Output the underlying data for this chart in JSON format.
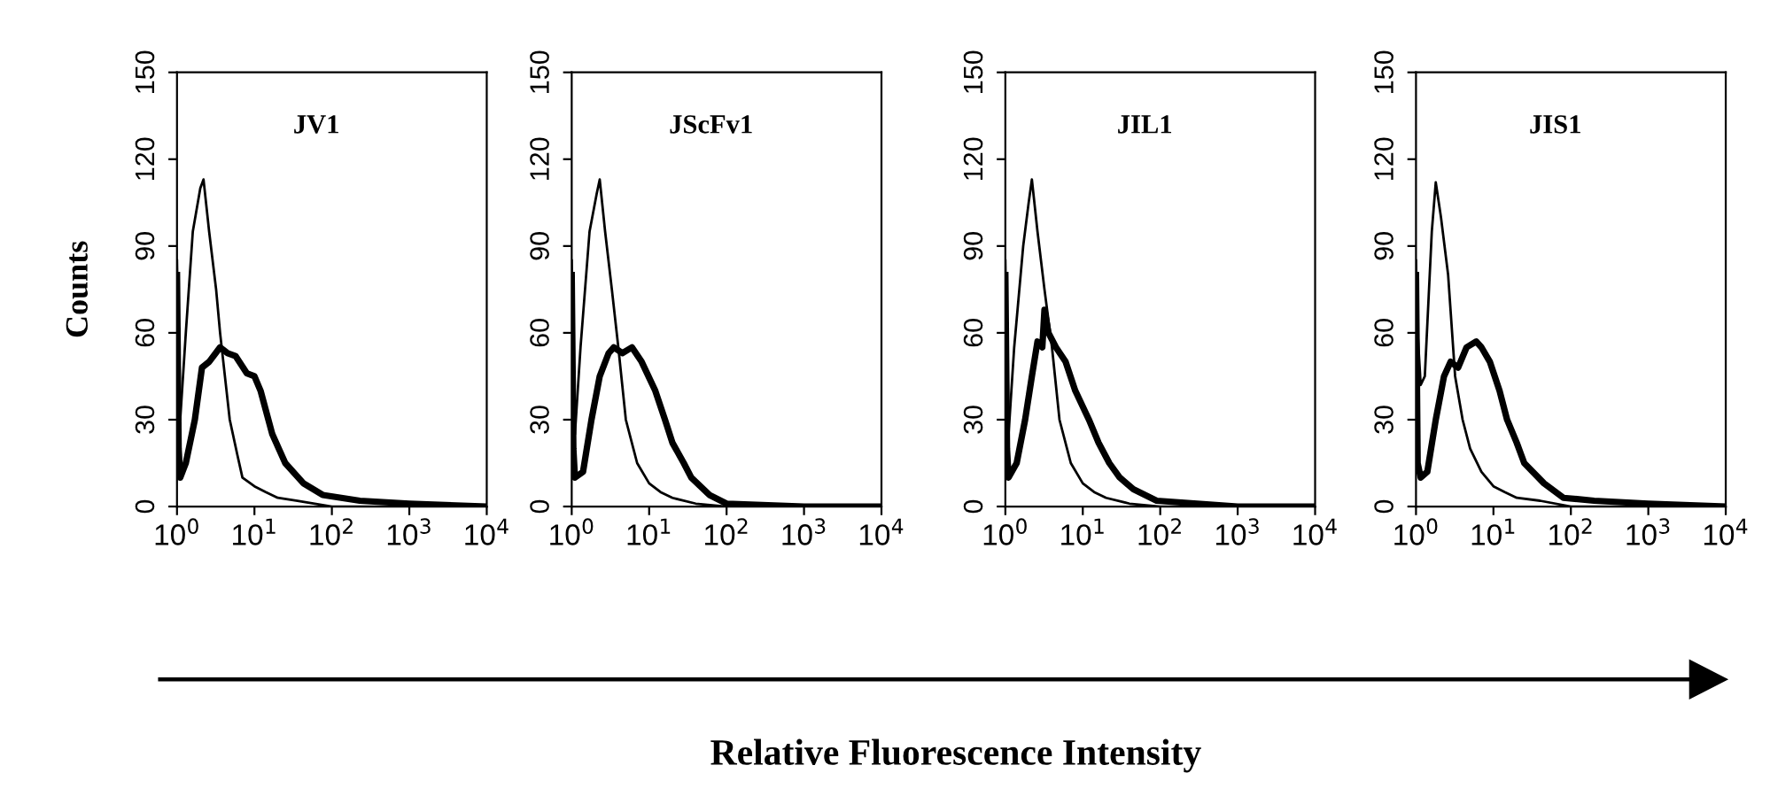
{
  "chart_data": [
    {
      "type": "line",
      "annotations": [
        "JV1"
      ],
      "ylabel": "Counts",
      "xlabel": "Relative Fluorescence Intensity",
      "log": "x",
      "xlim": [
        1,
        10000
      ],
      "ylim": [
        0,
        150
      ],
      "xticks": [
        {
          "value": 1,
          "label": "10$^{0}$"
        },
        {
          "value": 10,
          "label": "10$^{1}$"
        },
        {
          "value": 100,
          "label": "10$^{2}$"
        },
        {
          "value": 1000,
          "label": "10$^{3}$"
        },
        {
          "value": 10000,
          "label": "10$^{4}$"
        }
      ],
      "yticks": [
        0,
        30,
        60,
        90,
        120,
        150
      ],
      "series": [
        {
          "color": "#000000",
          "x": [
            1,
            1.05,
            1.1,
            1.3,
            1.6,
            2.0,
            2.2,
            2.6,
            3.2,
            3.6,
            4.8,
            6,
            7,
            10,
            14,
            20,
            36,
            60,
            100,
            1000,
            10000
          ],
          "values": [
            85,
            50,
            30,
            60,
            95,
            110,
            113,
            95,
            75,
            60,
            30,
            18,
            10,
            7,
            5,
            3,
            2,
            1,
            0,
            0,
            0
          ]
        },
        {
          "color": "#000000",
          "x": [
            1,
            1.05,
            1.1,
            1.3,
            1.7,
            2.1,
            2.6,
            3.6,
            4.5,
            5.7,
            8,
            10,
            12,
            17,
            25,
            43,
            76,
            230,
            1000,
            10000
          ],
          "values": [
            80,
            20,
            10,
            15,
            30,
            48,
            50,
            55,
            53,
            52,
            46,
            45,
            40,
            25,
            15,
            8,
            4,
            2,
            1,
            0
          ]
        }
      ]
    },
    {
      "type": "line",
      "annotations": [
        "JScFv1"
      ],
      "log": "x",
      "xlim": [
        1,
        10000
      ],
      "ylim": [
        0,
        150
      ],
      "xticks": [
        {
          "value": 1,
          "label": "10$^{0}$"
        },
        {
          "value": 10,
          "label": "10$^{1}$"
        },
        {
          "value": 100,
          "label": "10$^{2}$"
        },
        {
          "value": 1000,
          "label": "10$^{3}$"
        },
        {
          "value": 10000,
          "label": "10$^{4}$"
        }
      ],
      "yticks": [
        0,
        30,
        60,
        90,
        120,
        150
      ],
      "series": [
        {
          "color": "#000000",
          "x": [
            1,
            1.05,
            1.1,
            1.3,
            1.7,
            2.1,
            2.3,
            2.7,
            3.3,
            4,
            5,
            7,
            10,
            14,
            20,
            40,
            100,
            1000,
            10000
          ],
          "values": [
            85,
            45,
            25,
            55,
            95,
            108,
            113,
            95,
            75,
            55,
            30,
            15,
            8,
            5,
            3,
            1,
            0,
            0,
            0
          ]
        },
        {
          "color": "#000000",
          "x": [
            1,
            1.05,
            1.1,
            1.4,
            1.8,
            2.3,
            3,
            3.5,
            4.5,
            6,
            8,
            12,
            16,
            20,
            28,
            35,
            60,
            100,
            1000,
            10000
          ],
          "values": [
            80,
            20,
            10,
            12,
            30,
            45,
            53,
            55,
            53,
            55,
            50,
            40,
            30,
            22,
            15,
            10,
            4,
            1,
            0,
            0
          ]
        }
      ]
    },
    {
      "type": "line",
      "annotations": [
        "JIL1"
      ],
      "log": "x",
      "xlim": [
        1,
        10000
      ],
      "ylim": [
        0,
        150
      ],
      "xticks": [
        {
          "value": 1,
          "label": "10$^{0}$"
        },
        {
          "value": 10,
          "label": "10$^{1}$"
        },
        {
          "value": 100,
          "label": "10$^{2}$"
        },
        {
          "value": 1000,
          "label": "10$^{3}$"
        },
        {
          "value": 10000,
          "label": "10$^{4}$"
        }
      ],
      "yticks": [
        0,
        30,
        60,
        90,
        120,
        150
      ],
      "series": [
        {
          "color": "#000000",
          "x": [
            1,
            1.05,
            1.1,
            1.3,
            1.7,
            2.0,
            2.2,
            2.6,
            3.2,
            4,
            5,
            7,
            10,
            14,
            20,
            40,
            100,
            1000,
            10000
          ],
          "values": [
            85,
            45,
            25,
            55,
            90,
            105,
            113,
            95,
            75,
            55,
            30,
            15,
            8,
            5,
            3,
            1,
            0,
            0,
            0
          ]
        },
        {
          "color": "#000000",
          "x": [
            1,
            1.05,
            1.1,
            1.4,
            1.8,
            2.2,
            2.6,
            3.0,
            3.2,
            3.6,
            4.5,
            6,
            8,
            12,
            16,
            22,
            30,
            45,
            90,
            1000,
            10000
          ],
          "values": [
            80,
            20,
            10,
            15,
            30,
            45,
            57,
            55,
            68,
            60,
            55,
            50,
            40,
            30,
            22,
            15,
            10,
            6,
            2,
            0,
            0
          ]
        }
      ]
    },
    {
      "type": "line",
      "annotations": [
        "JIS1"
      ],
      "log": "x",
      "xlim": [
        1,
        10000
      ],
      "ylim": [
        0,
        150
      ],
      "xticks": [
        {
          "value": 1,
          "label": "10$^{0}$"
        },
        {
          "value": 10,
          "label": "10$^{1}$"
        },
        {
          "value": 100,
          "label": "10$^{2}$"
        },
        {
          "value": 1000,
          "label": "10$^{3}$"
        },
        {
          "value": 10000,
          "label": "10$^{4}$"
        }
      ],
      "yticks": [
        0,
        30,
        60,
        90,
        120,
        150
      ],
      "series": [
        {
          "color": "#000000",
          "x": [
            1,
            1.05,
            1.15,
            1.3,
            1.6,
            1.8,
            2.1,
            2.6,
            3.2,
            4,
            5,
            7,
            10,
            14,
            20,
            40,
            100,
            1000,
            10000
          ],
          "values": [
            85,
            60,
            42,
            45,
            95,
            112,
            100,
            80,
            45,
            30,
            20,
            12,
            7,
            5,
            3,
            2,
            0,
            0,
            0
          ]
        },
        {
          "color": "#000000",
          "x": [
            1,
            1.05,
            1.15,
            1.4,
            1.8,
            2.3,
            2.8,
            3.5,
            4.5,
            6,
            7,
            9,
            12,
            15,
            20,
            25,
            45,
            80,
            200,
            1000,
            10000
          ],
          "values": [
            80,
            15,
            10,
            12,
            30,
            45,
            50,
            48,
            55,
            57,
            55,
            50,
            40,
            30,
            22,
            15,
            8,
            3,
            2,
            1,
            0
          ]
        }
      ]
    }
  ]
}
